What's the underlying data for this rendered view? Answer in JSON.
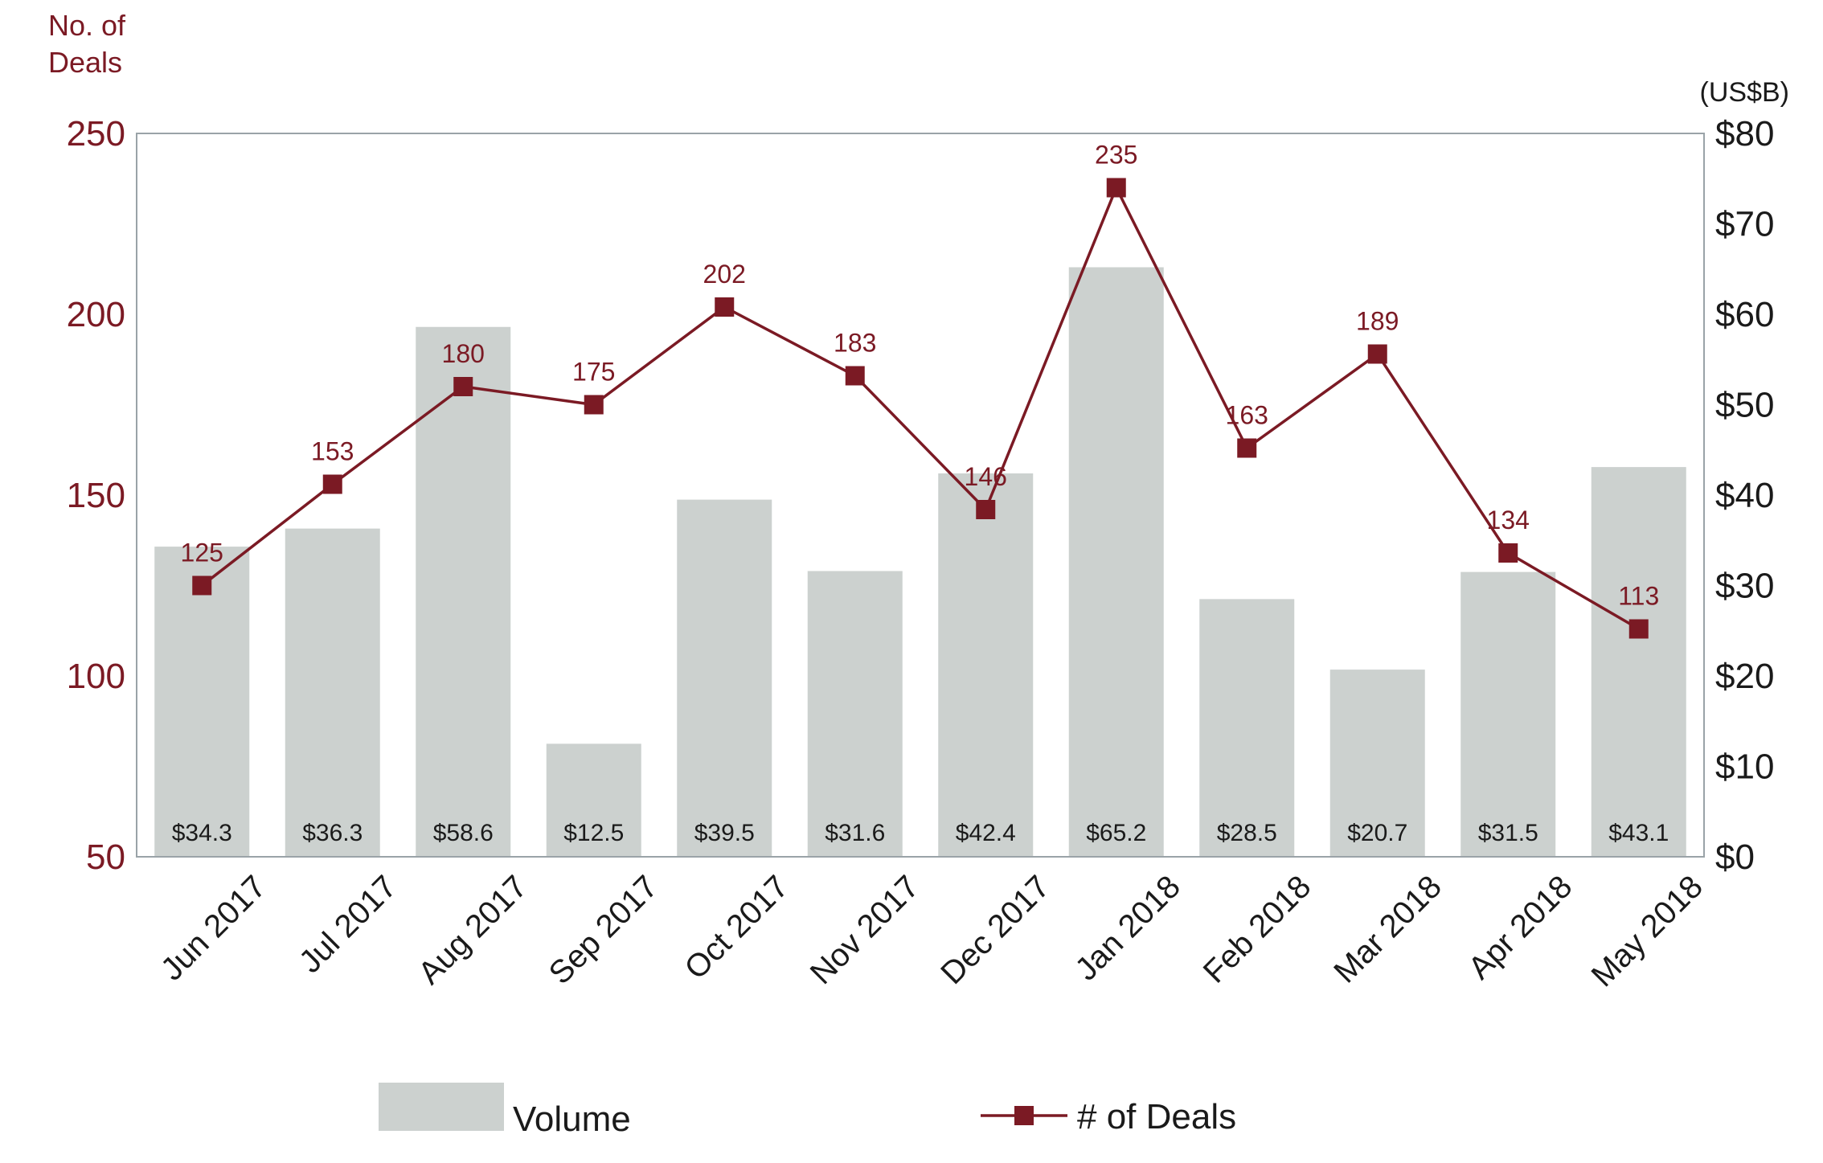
{
  "colors": {
    "bar": "#ccd1cf",
    "line": "#7b1a24",
    "axis_frame": "#9aa3a8",
    "text": "#1a1a1a"
  },
  "chart_data": {
    "type": "bar",
    "categories": [
      "Jun 2017",
      "Jul 2017",
      "Aug 2017",
      "Sep 2017",
      "Oct 2017",
      "Nov 2017",
      "Dec 2017",
      "Jan 2018",
      "Feb 2018",
      "Mar 2018",
      "Apr 2018",
      "May 2018"
    ],
    "series": [
      {
        "name": "Volume",
        "type": "bar",
        "axis": "right",
        "values": [
          34.3,
          36.3,
          58.6,
          12.5,
          39.5,
          31.6,
          42.4,
          65.2,
          28.5,
          20.7,
          31.5,
          43.1
        ],
        "labels": [
          "$34.3",
          "$36.3",
          "$58.6",
          "$12.5",
          "$39.5",
          "$31.6",
          "$42.4",
          "$65.2",
          "$28.5",
          "$20.7",
          "$31.5",
          "$43.1"
        ]
      },
      {
        "name": "# of Deals",
        "type": "line",
        "axis": "left",
        "marker": "square",
        "values": [
          125,
          153,
          180,
          175,
          202,
          183,
          146,
          235,
          163,
          189,
          134,
          113
        ],
        "labels": [
          "125",
          "153",
          "180",
          "175",
          "202",
          "183",
          "146",
          "235",
          "163",
          "189",
          "134",
          "113"
        ]
      }
    ],
    "y_left": {
      "title_line1": "No. of",
      "title_line2": "Deals",
      "ylim": [
        50,
        250
      ],
      "ticks": [
        50,
        100,
        150,
        200,
        250
      ],
      "tick_labels": [
        "50",
        "100",
        "150",
        "200",
        "250"
      ]
    },
    "y_right": {
      "title": "(US$B)",
      "ylim": [
        0,
        80
      ],
      "ticks": [
        0,
        10,
        20,
        30,
        40,
        50,
        60,
        70,
        80
      ],
      "tick_labels": [
        "$0",
        "$10",
        "$20",
        "$30",
        "$40",
        "$50",
        "$60",
        "$70",
        "$80"
      ]
    },
    "legend": {
      "placement": "bottom",
      "items": [
        {
          "label": "Volume",
          "kind": "bar"
        },
        {
          "label": "# of Deals",
          "kind": "line"
        }
      ]
    },
    "grid": false
  }
}
